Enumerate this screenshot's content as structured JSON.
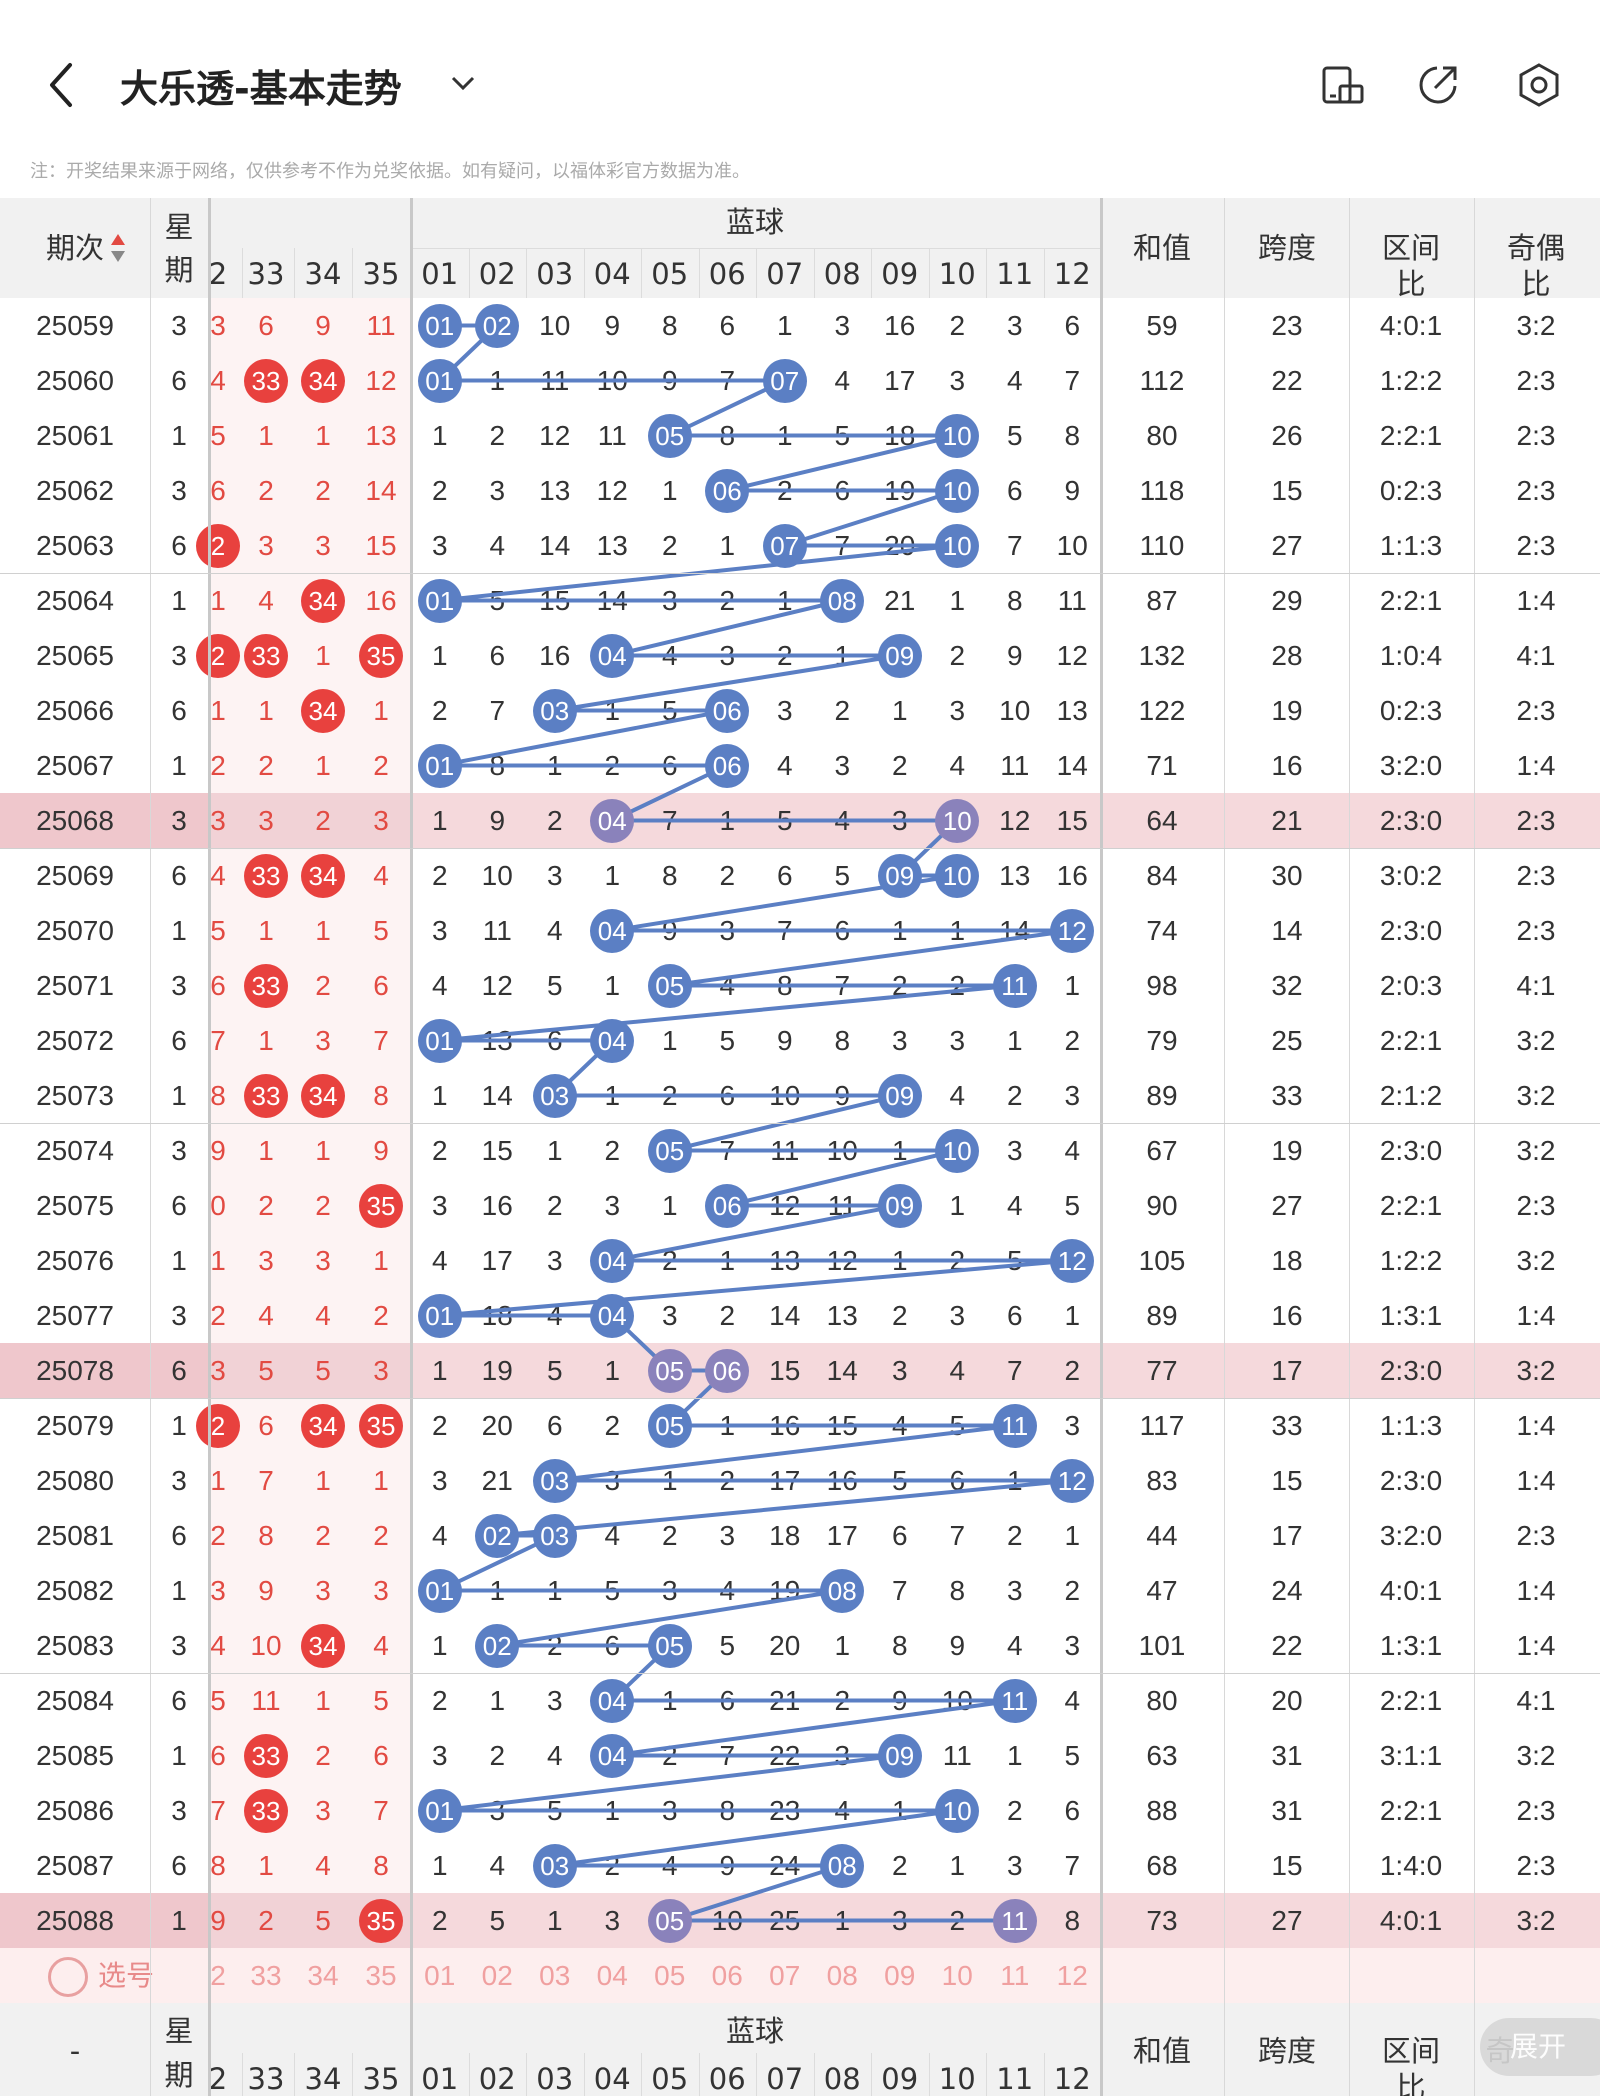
{
  "header": {
    "title": "大乐透-基本走势",
    "back_icon": "chevron-left-icon",
    "dropdown_icon": "chevron-down-icon",
    "action_icons": [
      "phone-rotate-icon",
      "share-icon",
      "settings-hex-icon"
    ]
  },
  "note": "注：开奖结果来源于网络，仅供参考不作为兑奖依据。如有疑问，以福体彩官方数据为准。",
  "table": {
    "col_issue": "期次",
    "col_week_1": "星",
    "col_week_2": "期",
    "blue_group": "蓝球",
    "col_sum": "和值",
    "col_span": "跨度",
    "col_zone": "区间比",
    "col_parity": "奇偶比",
    "red_tail_headers": [
      "2",
      "33",
      "34",
      "35"
    ],
    "blue_headers": [
      "01",
      "02",
      "03",
      "04",
      "05",
      "06",
      "07",
      "08",
      "09",
      "10",
      "11",
      "12"
    ],
    "rows": [
      {
        "issue": "25059",
        "week": "3",
        "red": [
          "3",
          "6",
          "9",
          "11"
        ],
        "redhit": [
          0,
          0,
          0,
          0
        ],
        "blue": [
          "01",
          "02",
          "10",
          "9",
          "8",
          "6",
          "1",
          "3",
          "16",
          "2",
          "3",
          "6"
        ],
        "hit": [
          1,
          2
        ],
        "sum": "59",
        "span": "23",
        "zone": "4:0:1",
        "parity": "3:2"
      },
      {
        "issue": "25060",
        "week": "6",
        "red": [
          "4",
          "33",
          "34",
          "12"
        ],
        "redhit": [
          0,
          1,
          1,
          0
        ],
        "blue": [
          "01",
          "1",
          "11",
          "10",
          "9",
          "7",
          "07",
          "4",
          "17",
          "3",
          "4",
          "7"
        ],
        "hit": [
          1,
          7
        ],
        "sum": "112",
        "span": "22",
        "zone": "1:2:2",
        "parity": "2:3"
      },
      {
        "issue": "25061",
        "week": "1",
        "red": [
          "5",
          "1",
          "1",
          "13"
        ],
        "redhit": [
          0,
          0,
          0,
          0
        ],
        "blue": [
          "1",
          "2",
          "12",
          "11",
          "05",
          "8",
          "1",
          "5",
          "18",
          "10",
          "5",
          "8"
        ],
        "hit": [
          5,
          10
        ],
        "sum": "80",
        "span": "26",
        "zone": "2:2:1",
        "parity": "2:3"
      },
      {
        "issue": "25062",
        "week": "3",
        "red": [
          "6",
          "2",
          "2",
          "14"
        ],
        "redhit": [
          0,
          0,
          0,
          0
        ],
        "blue": [
          "2",
          "3",
          "13",
          "12",
          "1",
          "06",
          "2",
          "6",
          "19",
          "10",
          "6",
          "9"
        ],
        "hit": [
          6,
          10
        ],
        "sum": "118",
        "span": "15",
        "zone": "0:2:3",
        "parity": "2:3"
      },
      {
        "issue": "25063",
        "week": "6",
        "red": [
          "2",
          "3",
          "3",
          "15"
        ],
        "redhit": [
          1,
          0,
          0,
          0
        ],
        "blue": [
          "3",
          "4",
          "14",
          "13",
          "2",
          "1",
          "07",
          "7",
          "20",
          "10",
          "7",
          "10"
        ],
        "hit": [
          7,
          10
        ],
        "sum": "110",
        "span": "27",
        "zone": "1:1:3",
        "parity": "2:3"
      },
      {
        "issue": "25064",
        "week": "1",
        "red": [
          "1",
          "4",
          "34",
          "16"
        ],
        "redhit": [
          0,
          0,
          1,
          0
        ],
        "blue": [
          "01",
          "5",
          "15",
          "14",
          "3",
          "2",
          "1",
          "08",
          "21",
          "1",
          "8",
          "11"
        ],
        "hit": [
          1,
          8
        ],
        "sum": "87",
        "span": "29",
        "zone": "2:2:1",
        "parity": "1:4"
      },
      {
        "issue": "25065",
        "week": "3",
        "red": [
          "2",
          "33",
          "1",
          "35"
        ],
        "redhit": [
          1,
          1,
          0,
          1
        ],
        "blue": [
          "1",
          "6",
          "16",
          "04",
          "4",
          "3",
          "2",
          "1",
          "09",
          "2",
          "9",
          "12"
        ],
        "hit": [
          4,
          9
        ],
        "sum": "132",
        "span": "28",
        "zone": "1:0:4",
        "parity": "4:1"
      },
      {
        "issue": "25066",
        "week": "6",
        "red": [
          "1",
          "1",
          "34",
          "1"
        ],
        "redhit": [
          0,
          0,
          1,
          0
        ],
        "blue": [
          "2",
          "7",
          "03",
          "1",
          "5",
          "06",
          "3",
          "2",
          "1",
          "3",
          "10",
          "13"
        ],
        "hit": [
          3,
          6
        ],
        "sum": "122",
        "span": "19",
        "zone": "0:2:3",
        "parity": "2:3"
      },
      {
        "issue": "25067",
        "week": "1",
        "red": [
          "2",
          "2",
          "1",
          "2"
        ],
        "redhit": [
          0,
          0,
          0,
          0
        ],
        "blue": [
          "01",
          "8",
          "1",
          "2",
          "6",
          "06",
          "4",
          "3",
          "2",
          "4",
          "11",
          "14"
        ],
        "hit": [
          1,
          6
        ],
        "sum": "71",
        "span": "16",
        "zone": "3:2:0",
        "parity": "1:4"
      },
      {
        "issue": "25068",
        "week": "3",
        "red": [
          "3",
          "3",
          "2",
          "3"
        ],
        "redhit": [
          0,
          0,
          0,
          0
        ],
        "blue": [
          "1",
          "9",
          "2",
          "04",
          "7",
          "1",
          "5",
          "4",
          "3",
          "10",
          "12",
          "15"
        ],
        "hit": [
          4,
          10
        ],
        "sum": "64",
        "span": "21",
        "zone": "2:3:0",
        "parity": "2:3",
        "hl": true
      },
      {
        "issue": "25069",
        "week": "6",
        "red": [
          "4",
          "33",
          "34",
          "4"
        ],
        "redhit": [
          0,
          1,
          1,
          0
        ],
        "blue": [
          "2",
          "10",
          "3",
          "1",
          "8",
          "2",
          "6",
          "5",
          "09",
          "10",
          "13",
          "16"
        ],
        "hit": [
          9,
          10
        ],
        "sum": "84",
        "span": "30",
        "zone": "3:0:2",
        "parity": "2:3"
      },
      {
        "issue": "25070",
        "week": "1",
        "red": [
          "5",
          "1",
          "1",
          "5"
        ],
        "redhit": [
          0,
          0,
          0,
          0
        ],
        "blue": [
          "3",
          "11",
          "4",
          "04",
          "9",
          "3",
          "7",
          "6",
          "1",
          "1",
          "14",
          "12"
        ],
        "hit": [
          4,
          12
        ],
        "sum": "74",
        "span": "14",
        "zone": "2:3:0",
        "parity": "2:3"
      },
      {
        "issue": "25071",
        "week": "3",
        "red": [
          "6",
          "33",
          "2",
          "6"
        ],
        "redhit": [
          0,
          1,
          0,
          0
        ],
        "blue": [
          "4",
          "12",
          "5",
          "1",
          "05",
          "4",
          "8",
          "7",
          "2",
          "2",
          "11",
          "1"
        ],
        "hit": [
          5,
          11
        ],
        "sum": "98",
        "span": "32",
        "zone": "2:0:3",
        "parity": "4:1"
      },
      {
        "issue": "25072",
        "week": "6",
        "red": [
          "7",
          "1",
          "3",
          "7"
        ],
        "redhit": [
          0,
          0,
          0,
          0
        ],
        "blue": [
          "01",
          "13",
          "6",
          "04",
          "1",
          "5",
          "9",
          "8",
          "3",
          "3",
          "1",
          "2"
        ],
        "hit": [
          1,
          4
        ],
        "sum": "79",
        "span": "25",
        "zone": "2:2:1",
        "parity": "3:2"
      },
      {
        "issue": "25073",
        "week": "1",
        "red": [
          "8",
          "33",
          "34",
          "8"
        ],
        "redhit": [
          0,
          1,
          1,
          0
        ],
        "blue": [
          "1",
          "14",
          "03",
          "1",
          "2",
          "6",
          "10",
          "9",
          "09",
          "4",
          "2",
          "3"
        ],
        "hit": [
          3,
          9
        ],
        "sum": "89",
        "span": "33",
        "zone": "2:1:2",
        "parity": "3:2"
      },
      {
        "issue": "25074",
        "week": "3",
        "red": [
          "9",
          "1",
          "1",
          "9"
        ],
        "redhit": [
          0,
          0,
          0,
          0
        ],
        "blue": [
          "2",
          "15",
          "1",
          "2",
          "05",
          "7",
          "11",
          "10",
          "1",
          "10",
          "3",
          "4"
        ],
        "hit": [
          5,
          10
        ],
        "sum": "67",
        "span": "19",
        "zone": "2:3:0",
        "parity": "3:2"
      },
      {
        "issue": "25075",
        "week": "6",
        "red": [
          "0",
          "2",
          "2",
          "35"
        ],
        "redhit": [
          0,
          0,
          0,
          1
        ],
        "blue": [
          "3",
          "16",
          "2",
          "3",
          "1",
          "06",
          "12",
          "11",
          "09",
          "1",
          "4",
          "5"
        ],
        "hit": [
          6,
          9
        ],
        "sum": "90",
        "span": "27",
        "zone": "2:2:1",
        "parity": "2:3"
      },
      {
        "issue": "25076",
        "week": "1",
        "red": [
          "1",
          "3",
          "3",
          "1"
        ],
        "redhit": [
          0,
          0,
          0,
          0
        ],
        "blue": [
          "4",
          "17",
          "3",
          "04",
          "2",
          "1",
          "13",
          "12",
          "1",
          "2",
          "5",
          "12"
        ],
        "hit": [
          4,
          12
        ],
        "sum": "105",
        "span": "18",
        "zone": "1:2:2",
        "parity": "3:2"
      },
      {
        "issue": "25077",
        "week": "3",
        "red": [
          "2",
          "4",
          "4",
          "2"
        ],
        "redhit": [
          0,
          0,
          0,
          0
        ],
        "blue": [
          "01",
          "18",
          "4",
          "04",
          "3",
          "2",
          "14",
          "13",
          "2",
          "3",
          "6",
          "1"
        ],
        "hit": [
          1,
          4
        ],
        "sum": "89",
        "span": "16",
        "zone": "1:3:1",
        "parity": "1:4"
      },
      {
        "issue": "25078",
        "week": "6",
        "red": [
          "3",
          "5",
          "5",
          "3"
        ],
        "redhit": [
          0,
          0,
          0,
          0
        ],
        "blue": [
          "1",
          "19",
          "5",
          "1",
          "05",
          "06",
          "15",
          "14",
          "3",
          "4",
          "7",
          "2"
        ],
        "hit": [
          5,
          6
        ],
        "sum": "77",
        "span": "17",
        "zone": "2:3:0",
        "parity": "3:2",
        "hl": true
      },
      {
        "issue": "25079",
        "week": "1",
        "red": [
          "2",
          "6",
          "34",
          "35"
        ],
        "redhit": [
          1,
          0,
          1,
          1
        ],
        "blue": [
          "2",
          "20",
          "6",
          "2",
          "05",
          "1",
          "16",
          "15",
          "4",
          "5",
          "11",
          "3"
        ],
        "hit": [
          5,
          11
        ],
        "sum": "117",
        "span": "33",
        "zone": "1:1:3",
        "parity": "1:4"
      },
      {
        "issue": "25080",
        "week": "3",
        "red": [
          "1",
          "7",
          "1",
          "1"
        ],
        "redhit": [
          0,
          0,
          0,
          0
        ],
        "blue": [
          "3",
          "21",
          "03",
          "3",
          "1",
          "2",
          "17",
          "16",
          "5",
          "6",
          "1",
          "12"
        ],
        "hit": [
          3,
          12
        ],
        "sum": "83",
        "span": "15",
        "zone": "2:3:0",
        "parity": "1:4"
      },
      {
        "issue": "25081",
        "week": "6",
        "red": [
          "2",
          "8",
          "2",
          "2"
        ],
        "redhit": [
          0,
          0,
          0,
          0
        ],
        "blue": [
          "4",
          "02",
          "03",
          "4",
          "2",
          "3",
          "18",
          "17",
          "6",
          "7",
          "2",
          "1"
        ],
        "hit": [
          2,
          3
        ],
        "sum": "44",
        "span": "17",
        "zone": "3:2:0",
        "parity": "2:3"
      },
      {
        "issue": "25082",
        "week": "1",
        "red": [
          "3",
          "9",
          "3",
          "3"
        ],
        "redhit": [
          0,
          0,
          0,
          0
        ],
        "blue": [
          "01",
          "1",
          "1",
          "5",
          "3",
          "4",
          "19",
          "08",
          "7",
          "8",
          "3",
          "2"
        ],
        "hit": [
          1,
          8
        ],
        "sum": "47",
        "span": "24",
        "zone": "4:0:1",
        "parity": "1:4"
      },
      {
        "issue": "25083",
        "week": "3",
        "red": [
          "4",
          "10",
          "34",
          "4"
        ],
        "redhit": [
          0,
          0,
          1,
          0
        ],
        "blue": [
          "1",
          "02",
          "2",
          "6",
          "05",
          "5",
          "20",
          "1",
          "8",
          "9",
          "4",
          "3"
        ],
        "hit": [
          2,
          5
        ],
        "sum": "101",
        "span": "22",
        "zone": "1:3:1",
        "parity": "1:4"
      },
      {
        "issue": "25084",
        "week": "6",
        "red": [
          "5",
          "11",
          "1",
          "5"
        ],
        "redhit": [
          0,
          0,
          0,
          0
        ],
        "blue": [
          "2",
          "1",
          "3",
          "04",
          "1",
          "6",
          "21",
          "2",
          "9",
          "10",
          "11",
          "4"
        ],
        "hit": [
          4,
          11
        ],
        "sum": "80",
        "span": "20",
        "zone": "2:2:1",
        "parity": "4:1"
      },
      {
        "issue": "25085",
        "week": "1",
        "red": [
          "6",
          "33",
          "2",
          "6"
        ],
        "redhit": [
          0,
          1,
          0,
          0
        ],
        "blue": [
          "3",
          "2",
          "4",
          "04",
          "2",
          "7",
          "22",
          "3",
          "09",
          "11",
          "1",
          "5"
        ],
        "hit": [
          4,
          9
        ],
        "sum": "63",
        "span": "31",
        "zone": "3:1:1",
        "parity": "3:2"
      },
      {
        "issue": "25086",
        "week": "3",
        "red": [
          "7",
          "33",
          "3",
          "7"
        ],
        "redhit": [
          0,
          1,
          0,
          0
        ],
        "blue": [
          "01",
          "3",
          "5",
          "1",
          "3",
          "8",
          "23",
          "4",
          "1",
          "10",
          "2",
          "6"
        ],
        "hit": [
          1,
          10
        ],
        "sum": "88",
        "span": "31",
        "zone": "2:2:1",
        "parity": "2:3"
      },
      {
        "issue": "25087",
        "week": "6",
        "red": [
          "8",
          "1",
          "4",
          "8"
        ],
        "redhit": [
          0,
          0,
          0,
          0
        ],
        "blue": [
          "1",
          "4",
          "03",
          "2",
          "4",
          "9",
          "24",
          "08",
          "2",
          "1",
          "3",
          "7"
        ],
        "hit": [
          3,
          8
        ],
        "sum": "68",
        "span": "15",
        "zone": "1:4:0",
        "parity": "2:3"
      },
      {
        "issue": "25088",
        "week": "1",
        "red": [
          "9",
          "2",
          "5",
          "35"
        ],
        "redhit": [
          0,
          0,
          0,
          1
        ],
        "blue": [
          "2",
          "5",
          "1",
          "3",
          "05",
          "10",
          "25",
          "1",
          "3",
          "2",
          "11",
          "8"
        ],
        "hit": [
          5,
          11
        ],
        "sum": "73",
        "span": "27",
        "zone": "4:0:1",
        "parity": "3:2",
        "hl": true
      }
    ],
    "select_label": "选号",
    "footer_issue": "-",
    "footer_parity_partial": "奇",
    "expand_label": "展开"
  },
  "colors": {
    "red_ball": "#e8413e",
    "blue_ball": "#5b7fc4",
    "blue_ball_highlight": "#8a82bb",
    "highlight_row": "#f5d9dc",
    "line": "#5b7fc4"
  }
}
